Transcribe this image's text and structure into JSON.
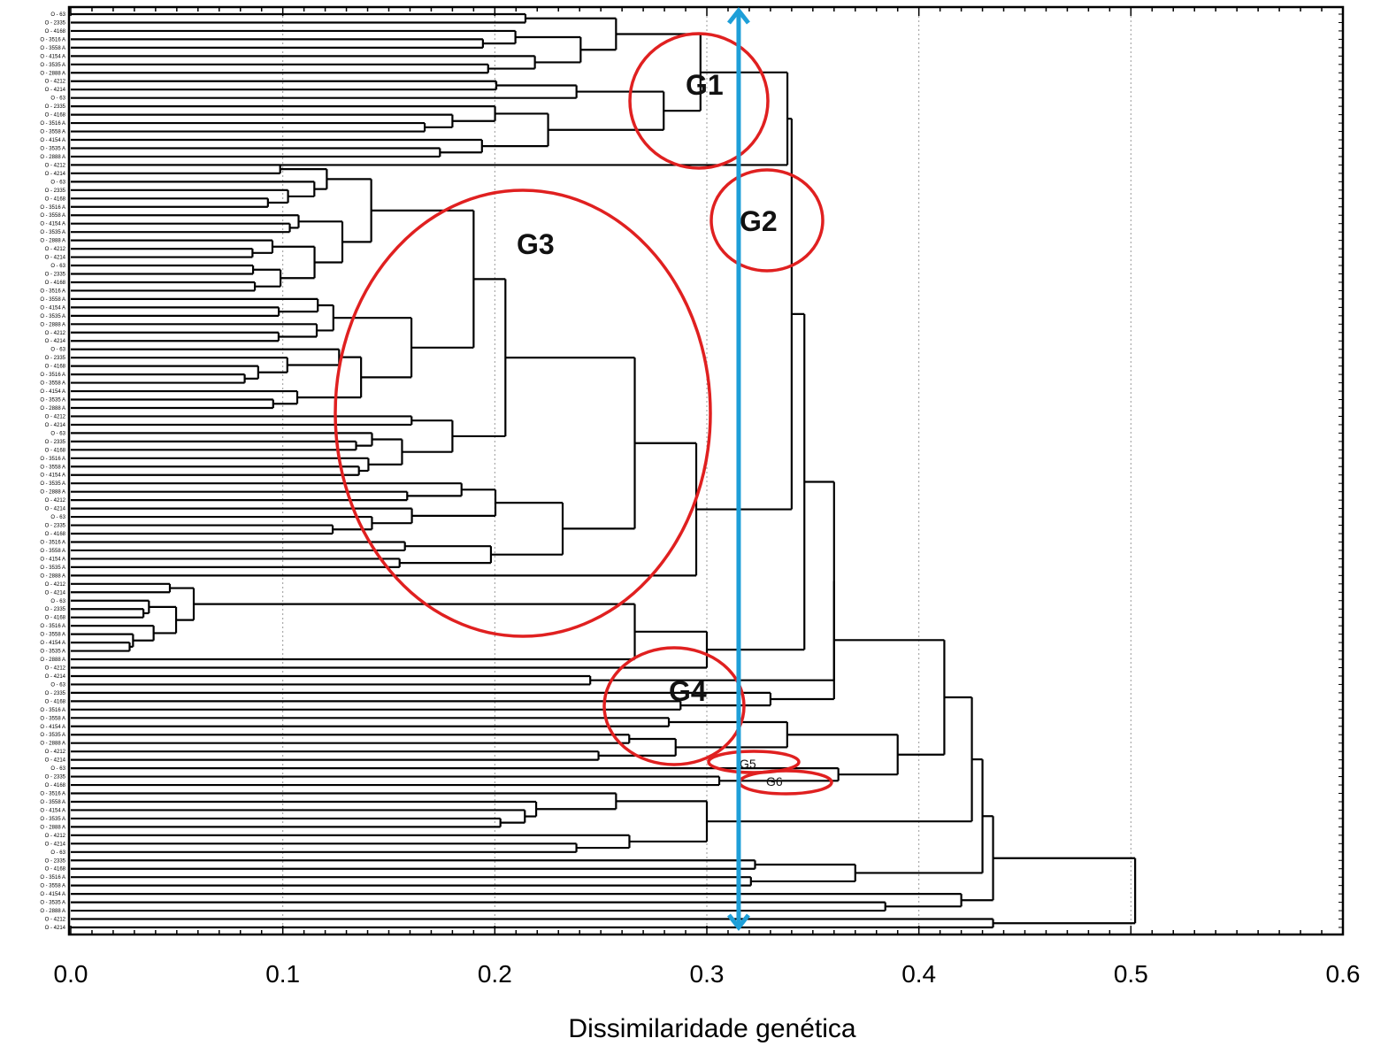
{
  "chart_data": {
    "type": "dendrogram",
    "title": "",
    "xlabel": "Dissimilaridade genética",
    "ylabel": "",
    "xlim": [
      0.0,
      0.6
    ],
    "x_ticks": [
      "0.0",
      "0.1",
      "0.2",
      "0.3",
      "0.4",
      "0.5",
      "0.6"
    ],
    "grid": "vertical dotted",
    "cut_line": {
      "x": 0.315,
      "color": "#1e9fd8"
    },
    "leaf_count": 110,
    "leaves_visible_labels": [
      "O - 63",
      "O - 2335",
      "O - 4168",
      "O - 3516 A",
      "O - 3558 A",
      "O - 4154 A",
      "O - 3535 A",
      "O - 2888 A",
      "O - 4212",
      "O - 4214"
    ],
    "merge_heights": [
      0.5,
      0.435,
      0.43,
      0.425,
      0.41,
      0.39,
      0.36,
      0.34,
      0.34,
      0.3,
      0.29,
      0.27,
      0.265,
      0.232,
      0.22,
      0.205,
      0.2,
      0.19,
      0.175,
      0.15,
      0.13,
      0.11,
      0.09,
      0.07,
      0.05,
      0.03,
      0.015
    ],
    "groups": [
      {
        "name": "G1",
        "color": "#e02020"
      },
      {
        "name": "G2",
        "color": "#e02020"
      },
      {
        "name": "G3",
        "color": "#e02020"
      },
      {
        "name": "G4",
        "color": "#e02020"
      },
      {
        "name": "G5",
        "color": "#e02020"
      },
      {
        "name": "G6",
        "color": "#e02020"
      }
    ]
  }
}
